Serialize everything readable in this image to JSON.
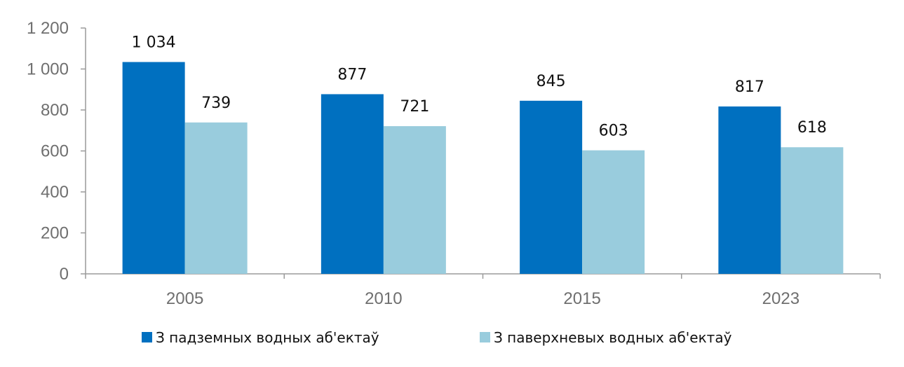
{
  "chart_data": {
    "type": "bar",
    "title": "",
    "xlabel": "",
    "ylabel": "",
    "categories": [
      "2005",
      "2010",
      "2015",
      "2023"
    ],
    "ylim": [
      0,
      1200
    ],
    "yticks": [
      0,
      200,
      400,
      600,
      800,
      1000,
      1200
    ],
    "ytick_labels": [
      "0",
      "200",
      "400",
      "600",
      "800",
      "1 000",
      "1 200"
    ],
    "grid": false,
    "legend_position": "bottom",
    "series": [
      {
        "name": "З падземных водных аб'ектаў",
        "values": [
          1034,
          877,
          845,
          817
        ],
        "labels": [
          "1 034",
          "877",
          "845",
          "817"
        ],
        "color": "#0070c0"
      },
      {
        "name": "З паверхневых водных аб'ектаў",
        "values": [
          739,
          721,
          603,
          618
        ],
        "labels": [
          "739",
          "721",
          "603",
          "618"
        ],
        "color": "#99ccdd"
      }
    ]
  }
}
